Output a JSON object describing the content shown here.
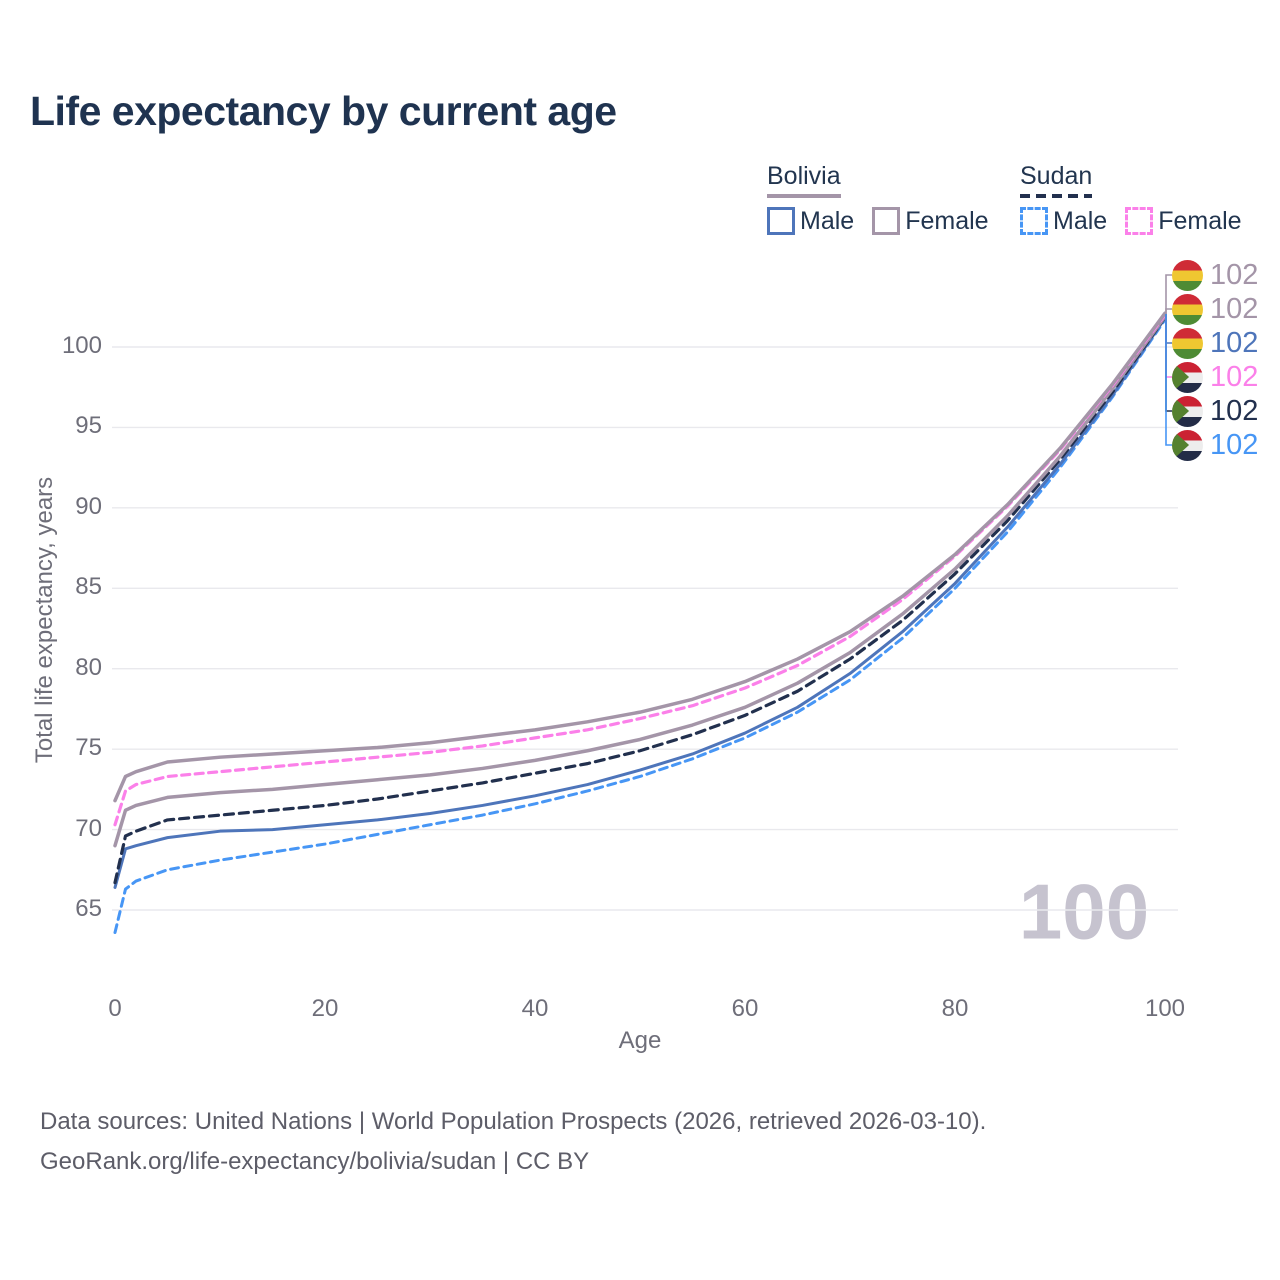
{
  "title": "Life expectancy by current age",
  "legend": {
    "groups": [
      {
        "name": "Bolivia",
        "items": [
          {
            "label": "Male"
          },
          {
            "label": "Female"
          }
        ]
      },
      {
        "name": "Sudan",
        "items": [
          {
            "label": "Male"
          },
          {
            "label": "Female"
          }
        ]
      }
    ]
  },
  "watermark": "100",
  "colors": {
    "title_text": "#1f3350",
    "bolivia_female": "#a495a8",
    "bolivia_total": "#a495a8",
    "bolivia_male": "#4e75ba",
    "sudan_female": "#fb80e9",
    "sudan_total": "#22304e",
    "sudan_male": "#4796f5",
    "grid": "#e9e9ed",
    "axis_text": "#6e6e79",
    "watermark": "#c6c3cf"
  },
  "chart_data": {
    "type": "line",
    "title": "Life expectancy by current age",
    "xlabel": "Age",
    "ylabel": "Total life expectancy, years",
    "x_ticks": [
      0,
      20,
      40,
      60,
      80,
      100
    ],
    "y_ticks": [
      65,
      70,
      75,
      80,
      85,
      90,
      95,
      100
    ],
    "xlim": [
      0,
      100
    ],
    "ylim": [
      63,
      103.5
    ],
    "grid": "horizontal",
    "legend_position": "top-right",
    "x": [
      0,
      1,
      2,
      5,
      10,
      15,
      20,
      25,
      30,
      35,
      40,
      45,
      50,
      55,
      60,
      65,
      70,
      75,
      80,
      85,
      90,
      95,
      100
    ],
    "series": [
      {
        "name": "Bolivia Female",
        "country": "Bolivia",
        "sex": "female",
        "style": "solid",
        "values": [
          71.8,
          73.3,
          73.6,
          74.2,
          74.5,
          74.7,
          74.9,
          75.1,
          75.4,
          75.8,
          76.2,
          76.7,
          77.3,
          78.1,
          79.2,
          80.6,
          82.3,
          84.5,
          87.1,
          90.2,
          93.7,
          97.7,
          102.1
        ]
      },
      {
        "name": "Bolivia Total",
        "country": "Bolivia",
        "sex": "both",
        "style": "solid",
        "values": [
          69.0,
          71.2,
          71.5,
          72.0,
          72.3,
          72.5,
          72.8,
          73.1,
          73.4,
          73.8,
          74.3,
          74.9,
          75.6,
          76.5,
          77.6,
          79.1,
          81.0,
          83.4,
          86.2,
          89.5,
          93.2,
          97.4,
          101.9
        ]
      },
      {
        "name": "Bolivia Male",
        "country": "Bolivia",
        "sex": "male",
        "style": "solid",
        "values": [
          66.4,
          68.8,
          69.0,
          69.5,
          69.9,
          70.0,
          70.3,
          70.6,
          71.0,
          71.5,
          72.1,
          72.8,
          73.7,
          74.7,
          76.0,
          77.6,
          79.7,
          82.3,
          85.3,
          88.8,
          92.7,
          97.0,
          101.8
        ]
      },
      {
        "name": "Sudan Female",
        "country": "Sudan",
        "sex": "female",
        "style": "dashed",
        "values": [
          70.3,
          72.4,
          72.8,
          73.3,
          73.6,
          73.9,
          74.2,
          74.5,
          74.8,
          75.2,
          75.7,
          76.2,
          76.9,
          77.7,
          78.8,
          80.2,
          82.0,
          84.3,
          87.0,
          90.1,
          93.6,
          97.6,
          102.0
        ]
      },
      {
        "name": "Sudan Total",
        "country": "Sudan",
        "sex": "both",
        "style": "dashed",
        "values": [
          66.7,
          69.6,
          69.9,
          70.6,
          70.9,
          71.2,
          71.5,
          71.9,
          72.4,
          72.9,
          73.5,
          74.1,
          74.9,
          75.9,
          77.1,
          78.6,
          80.6,
          83.0,
          85.9,
          89.2,
          93.0,
          97.2,
          101.85
        ]
      },
      {
        "name": "Sudan Male",
        "country": "Sudan",
        "sex": "male",
        "style": "dashed",
        "values": [
          63.6,
          66.3,
          66.8,
          67.5,
          68.1,
          68.6,
          69.1,
          69.7,
          70.3,
          70.9,
          71.6,
          72.4,
          73.3,
          74.4,
          75.7,
          77.3,
          79.3,
          81.9,
          85.0,
          88.5,
          92.5,
          96.9,
          101.7
        ]
      }
    ]
  },
  "end_labels": [
    {
      "flag": "bolivia",
      "value": "102",
      "color": "#a495a8",
      "series": "Bolivia Female"
    },
    {
      "flag": "bolivia",
      "value": "102",
      "color": "#a495a8",
      "series": "Bolivia Total"
    },
    {
      "flag": "bolivia",
      "value": "102",
      "color": "#4e75ba",
      "series": "Bolivia Male"
    },
    {
      "flag": "sudan",
      "value": "102",
      "color": "#fb80e9",
      "series": "Sudan Female"
    },
    {
      "flag": "sudan",
      "value": "102",
      "color": "#22304e",
      "series": "Sudan Total"
    },
    {
      "flag": "sudan",
      "value": "102",
      "color": "#4796f5",
      "series": "Sudan Male"
    }
  ],
  "footer": {
    "line1": "Data sources: United Nations | World Population Prospects (2026, retrieved 2026-03-10).",
    "line2": "GeoRank.org/life-expectancy/bolivia/sudan | CC BY"
  }
}
